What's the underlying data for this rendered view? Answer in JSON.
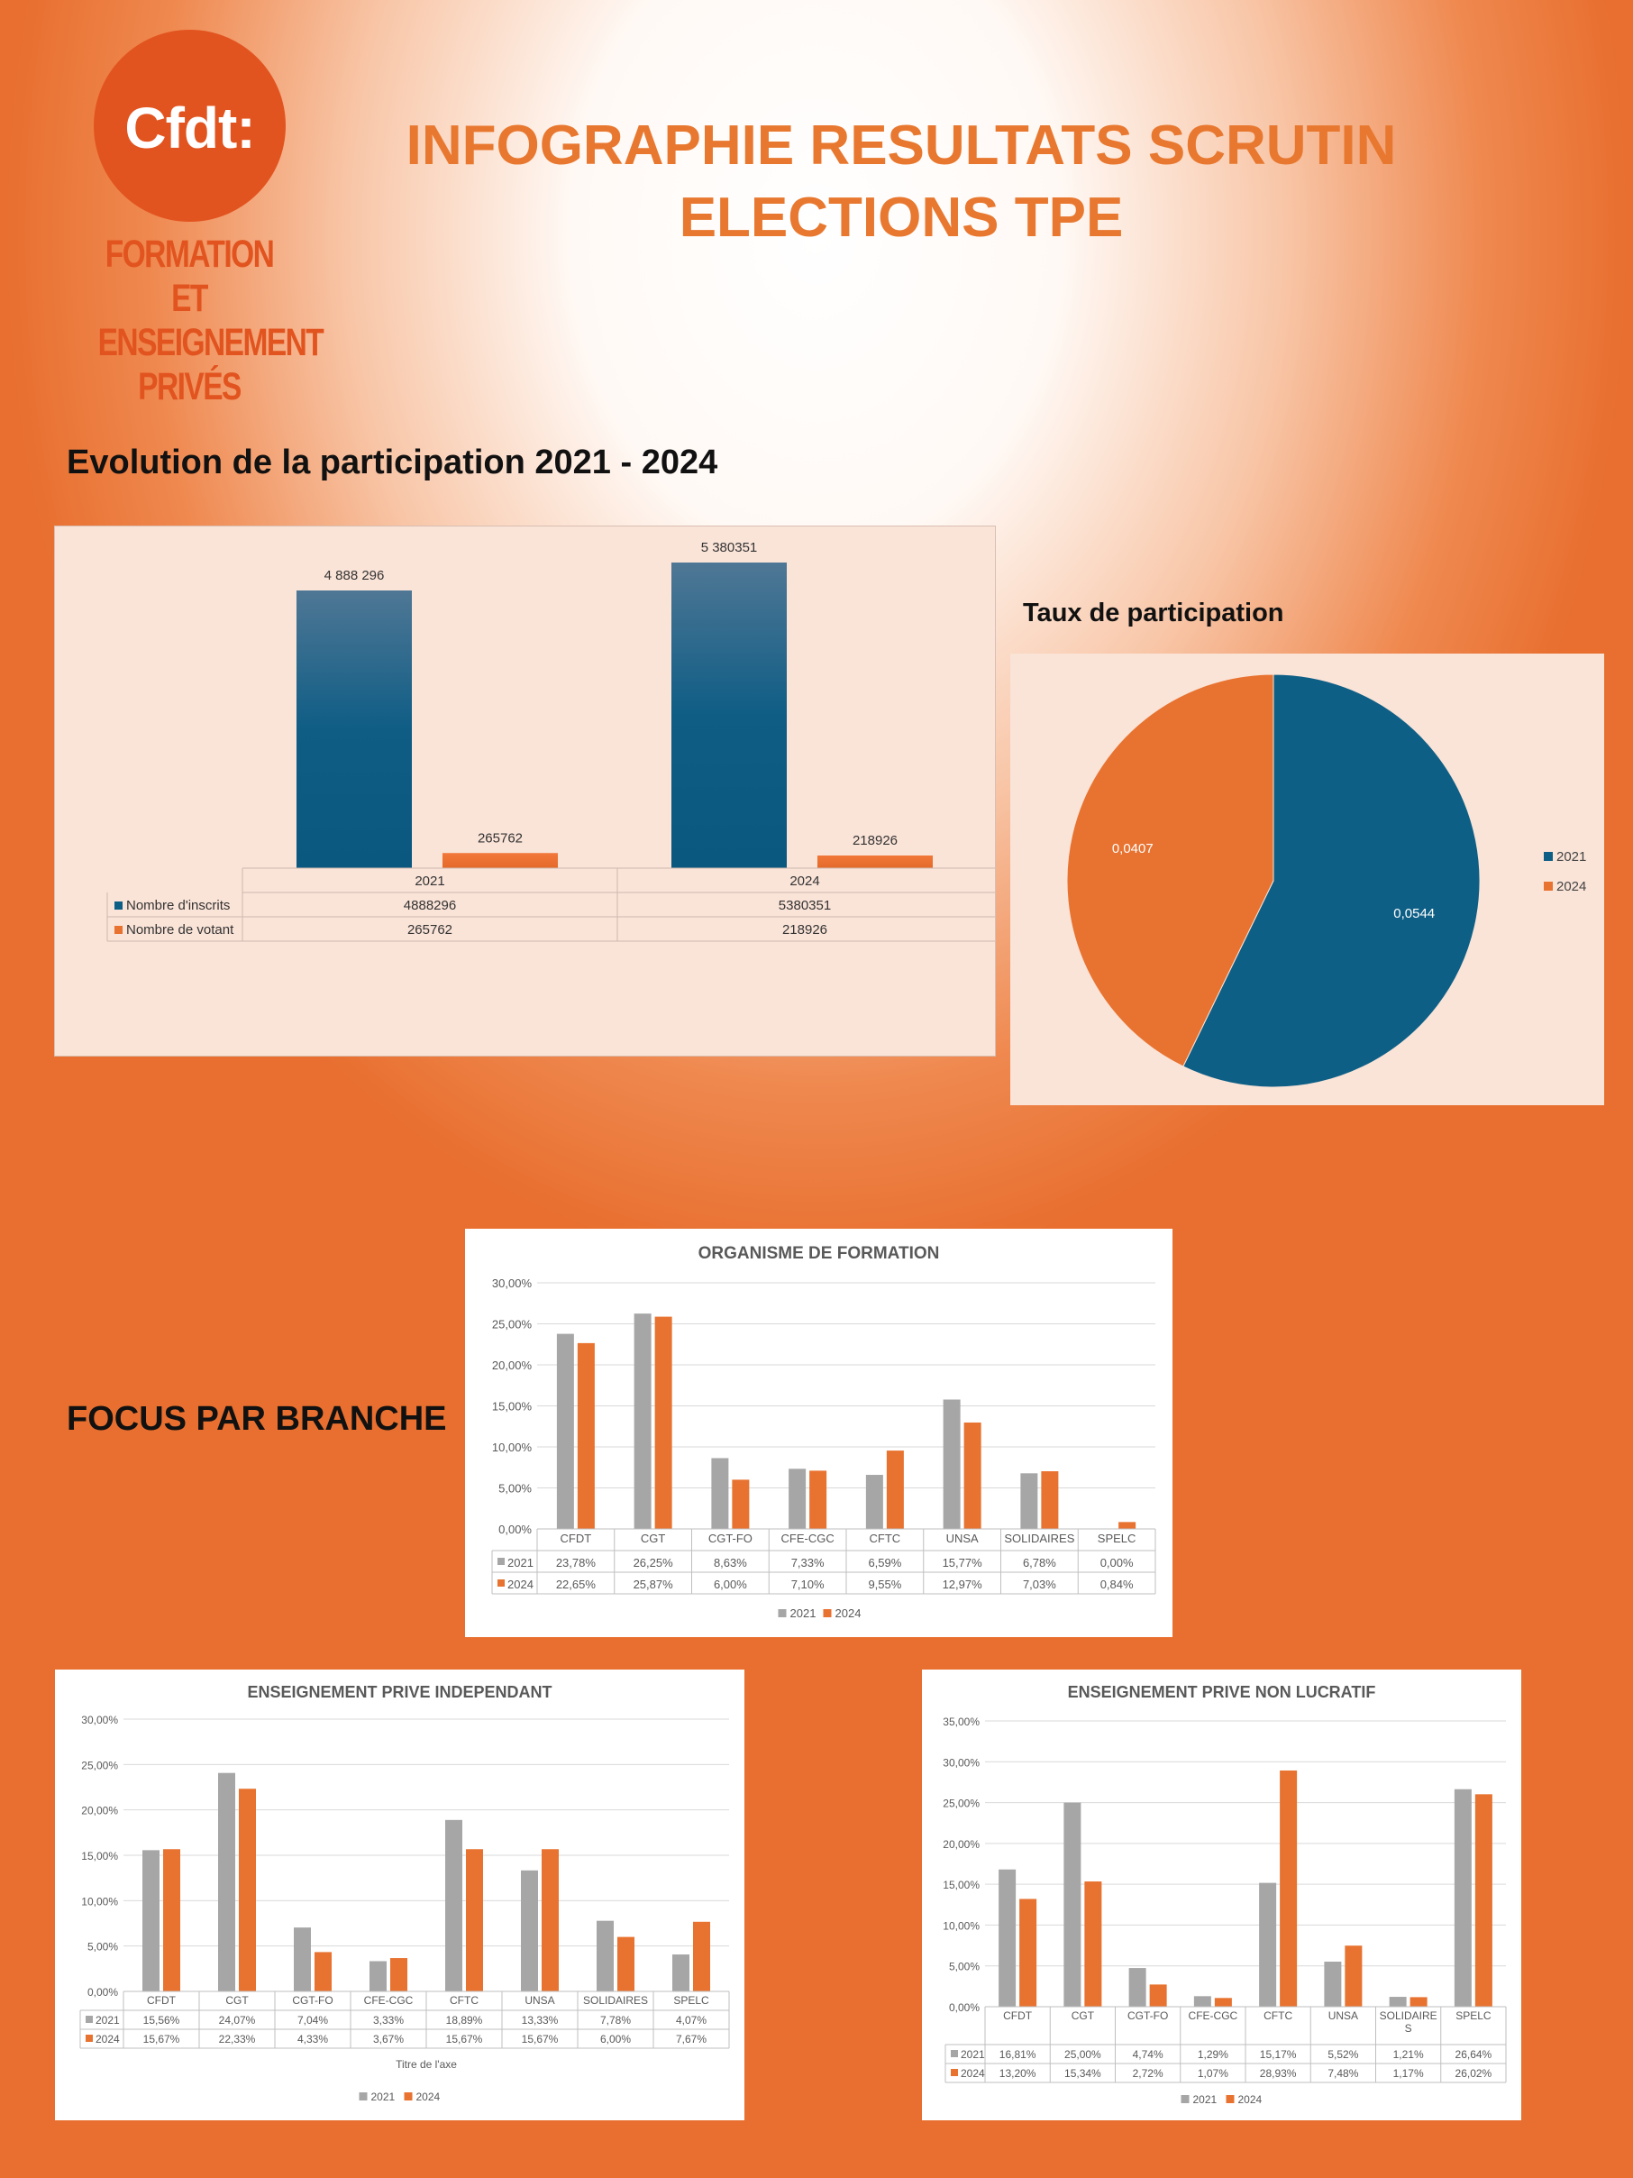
{
  "logo": {
    "word": "Cfdt:",
    "sub_lines": [
      "FORMATION ET",
      "ENSEIGNEMENT",
      "PRIVÉS"
    ]
  },
  "title_lines": [
    "INFOGRAPHIE RESULTATS SCRUTIN",
    "ELECTIONS TPE"
  ],
  "sections": {
    "participation": "Evolution de la participation 2021 - 2024",
    "taux": "Taux de participation",
    "focus": "FOCUS PAR BRANCHE"
  },
  "colors": {
    "blue": "#0e5f86",
    "orange": "#e8722f",
    "grey": "#a6a6a6",
    "accent": "#e8782f",
    "logo": "#e2541f"
  },
  "chart_data": [
    {
      "id": "participation",
      "type": "bar",
      "categories": [
        "2021",
        "2024"
      ],
      "series": [
        {
          "name": "Nombre d'inscrits",
          "values": [
            4888296,
            5380351
          ],
          "labels": [
            "4 888 296",
            "5 380351"
          ],
          "table": [
            "4888296",
            "5380351"
          ]
        },
        {
          "name": "Nombre de votant",
          "values": [
            265762,
            218926
          ],
          "labels": [
            "265762",
            "218926"
          ],
          "table": [
            "265762",
            "218926"
          ]
        }
      ]
    },
    {
      "id": "taux",
      "type": "pie",
      "slices": [
        {
          "name": "2021",
          "value": 0.0544,
          "label": "0,0544"
        },
        {
          "name": "2024",
          "value": 0.0407,
          "label": "0,0407"
        }
      ],
      "legend": "right"
    },
    {
      "id": "of",
      "type": "bar",
      "title": "ORGANISME DE FORMATION",
      "categories": [
        "CFDT",
        "CGT",
        "CGT-FO",
        "CFE-CGC",
        "CFTC",
        "UNSA",
        "SOLIDAIRES",
        "SPELC"
      ],
      "yticks": [
        "0,00%",
        "5,00%",
        "10,00%",
        "15,00%",
        "20,00%",
        "25,00%",
        "30,00%"
      ],
      "ylim": [
        0,
        30
      ],
      "series": [
        {
          "name": "2021",
          "values": [
            23.78,
            26.25,
            8.63,
            7.33,
            6.59,
            15.77,
            6.78,
            0.0
          ],
          "labels": [
            "23,78%",
            "26,25%",
            "8,63%",
            "7,33%",
            "6,59%",
            "15,77%",
            "6,78%",
            "0,00%"
          ]
        },
        {
          "name": "2024",
          "values": [
            22.65,
            25.87,
            6.0,
            7.1,
            9.55,
            12.97,
            7.03,
            0.84
          ],
          "labels": [
            "22,65%",
            "25,87%",
            "6,00%",
            "7,10%",
            "9,55%",
            "12,97%",
            "7,03%",
            "0,84%"
          ]
        }
      ],
      "xlabel": "",
      "legend": "bottom"
    },
    {
      "id": "epi",
      "type": "bar",
      "title": "ENSEIGNEMENT PRIVE INDEPENDANT",
      "categories": [
        "CFDT",
        "CGT",
        "CGT-FO",
        "CFE-CGC",
        "CFTC",
        "UNSA",
        "SOLIDAIRES",
        "SPELC"
      ],
      "yticks": [
        "0,00%",
        "5,00%",
        "10,00%",
        "15,00%",
        "20,00%",
        "25,00%",
        "30,00%"
      ],
      "ylim": [
        0,
        30
      ],
      "series": [
        {
          "name": "2021",
          "values": [
            15.56,
            24.07,
            7.04,
            3.33,
            18.89,
            13.33,
            7.78,
            4.07
          ],
          "labels": [
            "15,56%",
            "24,07%",
            "7,04%",
            "3,33%",
            "18,89%",
            "13,33%",
            "7,78%",
            "4,07%"
          ]
        },
        {
          "name": "2024",
          "values": [
            15.67,
            22.33,
            4.33,
            3.67,
            15.67,
            15.67,
            6.0,
            7.67
          ],
          "labels": [
            "15,67%",
            "22,33%",
            "4,33%",
            "3,67%",
            "15,67%",
            "15,67%",
            "6,00%",
            "7,67%"
          ]
        }
      ],
      "xlabel": "Titre de l'axe",
      "legend": "bottom"
    },
    {
      "id": "epnl",
      "type": "bar",
      "title": "ENSEIGNEMENT PRIVE NON LUCRATIF",
      "categories": [
        "CFDT",
        "CGT",
        "CGT-FO",
        "CFE-CGC",
        "CFTC",
        "UNSA",
        "SOLIDAIRE\nS",
        "SPELC"
      ],
      "yticks": [
        "0,00%",
        "5,00%",
        "10,00%",
        "15,00%",
        "20,00%",
        "25,00%",
        "30,00%",
        "35,00%"
      ],
      "ylim": [
        0,
        35
      ],
      "series": [
        {
          "name": "2021",
          "values": [
            16.81,
            25.0,
            4.74,
            1.29,
            15.17,
            5.52,
            1.21,
            26.64
          ],
          "labels": [
            "16,81%",
            "25,00%",
            "4,74%",
            "1,29%",
            "15,17%",
            "5,52%",
            "1,21%",
            "26,64%"
          ]
        },
        {
          "name": "2024",
          "values": [
            13.2,
            15.34,
            2.72,
            1.07,
            28.93,
            7.48,
            1.17,
            26.02
          ],
          "labels": [
            "13,20%",
            "15,34%",
            "2,72%",
            "1,07%",
            "28,93%",
            "7,48%",
            "1,17%",
            "26,02%"
          ]
        }
      ],
      "xlabel": "",
      "legend": "bottom"
    }
  ]
}
